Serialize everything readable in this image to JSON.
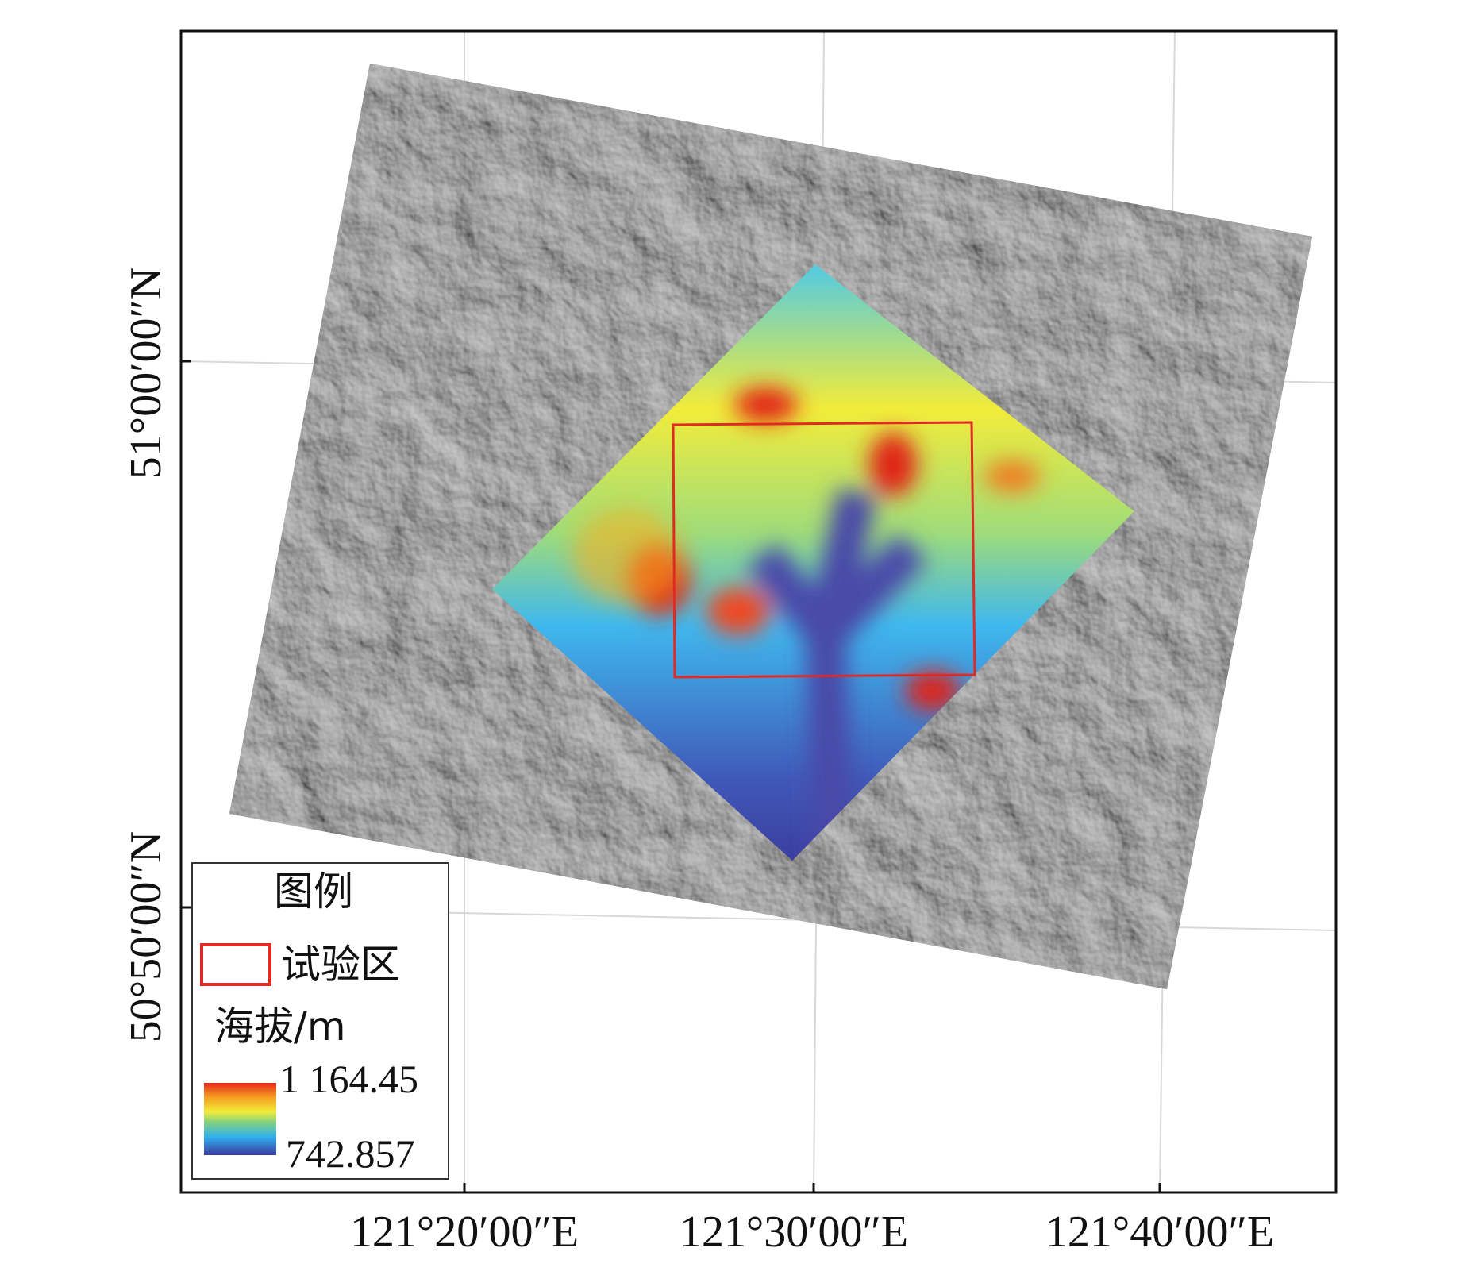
{
  "map": {
    "x_labels": [
      "121°20′00″E",
      "121°30′00″E",
      "121°40′00″E"
    ],
    "y_labels": [
      "51°00′00″N",
      "50°50′00″N"
    ],
    "legend": {
      "title": "图例",
      "study_area": "试验区",
      "elevation_title": "海拔/m",
      "elevation_max": "1 164.45",
      "elevation_min": "742.857"
    }
  }
}
